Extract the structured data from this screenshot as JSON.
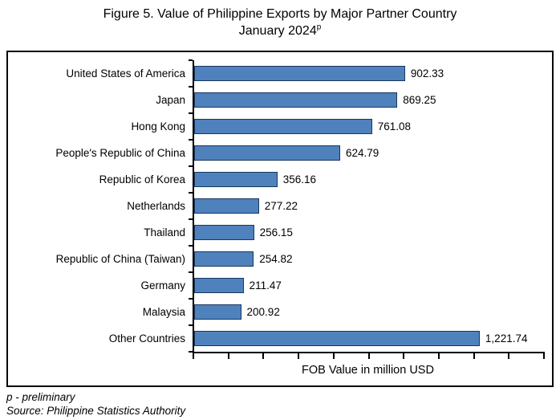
{
  "title": {
    "line1": "Figure 5. Value of Philippine Exports by Major Partner Country",
    "line2": "January 2024",
    "superscript": "p"
  },
  "chart_data": {
    "type": "bar",
    "orientation": "horizontal",
    "categories": [
      "United States of America",
      "Japan",
      "Hong Kong",
      "People's Republic of China",
      "Republic of Korea",
      "Netherlands",
      "Thailand",
      "Republic of China (Taiwan)",
      "Germany",
      "Malaysia",
      "Other Countries"
    ],
    "values": [
      902.33,
      869.25,
      761.08,
      624.79,
      356.16,
      277.22,
      256.15,
      254.82,
      211.47,
      200.92,
      1221.74
    ],
    "value_labels": [
      "902.33",
      "869.25",
      "761.08",
      "624.79",
      "356.16",
      "277.22",
      "256.15",
      "254.82",
      "211.47",
      "200.92",
      "1,221.74"
    ],
    "xlabel": "FOB Value in million USD",
    "xlim": [
      0,
      1500
    ],
    "x_tick_count": 11,
    "grid": false,
    "legend": false,
    "bar_color": "#4F81BD",
    "bar_border_color": "#17375D"
  },
  "footnotes": {
    "line1": "p - preliminary",
    "line2": "Source: Philippine Statistics Authority"
  }
}
